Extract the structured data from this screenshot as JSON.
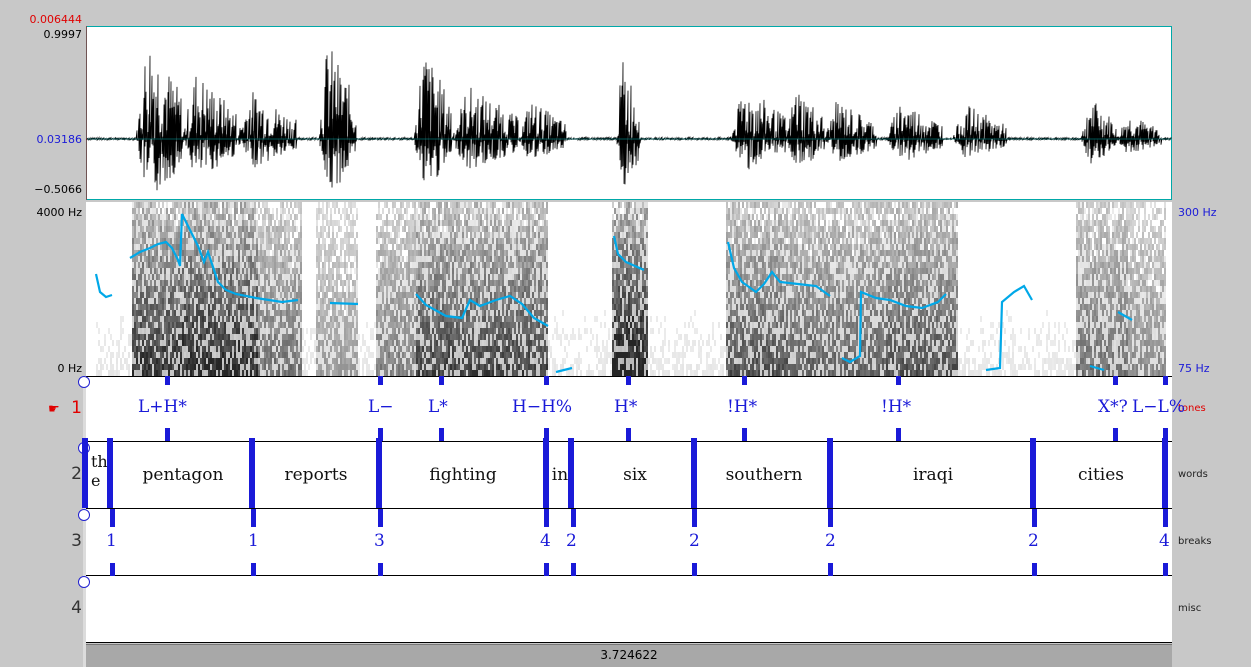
{
  "selection_time": "0.006444",
  "waveform": {
    "max_label": "0.9997",
    "mid_label": "0.03186",
    "min_label": "−0.5066"
  },
  "spectrogram": {
    "top_freq": "4000 Hz",
    "bottom_freq": "0 Hz",
    "pitch_max": "300 Hz",
    "pitch_min": "75 Hz"
  },
  "tiers": [
    {
      "number": "1",
      "name": "tones",
      "active": true
    },
    {
      "number": "2",
      "name": "words"
    },
    {
      "number": "3",
      "name": "breaks"
    },
    {
      "number": "4",
      "name": "misc"
    }
  ],
  "tones": [
    "L+H*",
    "L−",
    "L*",
    "H−H%",
    "H*",
    "!H*",
    "!H*",
    "X*?",
    "L−L%"
  ],
  "words": [
    "th e",
    "pentagon",
    "reports",
    "fighting",
    "in",
    "six",
    "southern",
    "iraqi",
    "cities"
  ],
  "breaks": [
    "1",
    "1",
    "3",
    "4",
    "2",
    "2",
    "2",
    "2",
    "4"
  ],
  "duration": "3.724622",
  "colors": {
    "accent": "#1a1ad8",
    "pitch": "#00a8e8",
    "cursor": "#e00000"
  }
}
